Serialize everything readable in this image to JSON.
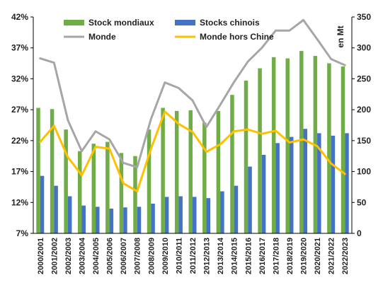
{
  "chart_data": {
    "type": "bar",
    "unit_label": "en Mt",
    "categories": [
      "2000/2001",
      "2001/2002",
      "2002/2003",
      "2003/2004",
      "2004/2005",
      "2005/2006",
      "2006/2007",
      "2007/2008",
      "2008/2009",
      "2009/2010",
      "2010/2011",
      "2011/2012",
      "2012/2013",
      "2013/2014",
      "2014/2015",
      "2015/2016",
      "2016/2017",
      "2017/2018",
      "2018/2019",
      "2019/2020",
      "2020/2021",
      "2021/2022",
      "2022/2023"
    ],
    "left_axis": {
      "ylim": [
        7,
        42
      ],
      "ticks": [
        "7%",
        "12%",
        "17%",
        "22%",
        "27%",
        "32%",
        "37%",
        "42%"
      ],
      "tick_values": [
        7,
        12,
        17,
        22,
        27,
        32,
        37,
        42
      ]
    },
    "right_axis": {
      "ylim": [
        0,
        350
      ],
      "ticks": [
        "0",
        "50",
        "100",
        "150",
        "200",
        "250",
        "300",
        "350"
      ],
      "tick_values": [
        0,
        50,
        100,
        150,
        200,
        250,
        300,
        350
      ]
    },
    "series": [
      {
        "name": "Stock mondiaux",
        "kind": "bar",
        "axis": "right",
        "color": "#70ad47",
        "values": [
          203,
          201,
          168,
          133,
          145,
          148,
          130,
          125,
          168,
          203,
          198,
          199,
          179,
          198,
          224,
          247,
          267,
          285,
          283,
          295,
          287,
          275,
          270
        ]
      },
      {
        "name": "Stocks chinois",
        "kind": "bar",
        "axis": "right",
        "color": "#4472c4",
        "values": [
          93,
          77,
          60,
          45,
          43,
          40,
          42,
          43,
          48,
          59,
          60,
          59,
          57,
          68,
          77,
          108,
          127,
          146,
          156,
          169,
          162,
          158,
          162
        ]
      },
      {
        "name": "Monde",
        "kind": "line",
        "axis": "left",
        "color": "#a6a6a6",
        "values": [
          35.3,
          34.6,
          25.3,
          20.3,
          23.5,
          22.2,
          18.4,
          17.7,
          25.5,
          31.4,
          30.5,
          28.5,
          24.2,
          27.8,
          31.5,
          34.8,
          37.0,
          39.8,
          39.8,
          41.5,
          38.4,
          35.2,
          34.2
        ]
      },
      {
        "name": "Monde hors Chine",
        "kind": "line",
        "axis": "left",
        "color": "#ffc000",
        "values": [
          21.8,
          24.4,
          19.3,
          16.4,
          21.0,
          20.7,
          15.1,
          13.8,
          20.7,
          26.7,
          24.7,
          23.4,
          20.2,
          21.4,
          23.5,
          23.8,
          23.1,
          23.6,
          21.7,
          22.2,
          21.1,
          18.3,
          16.6
        ]
      }
    ],
    "legend_position": "top",
    "grid": false
  }
}
